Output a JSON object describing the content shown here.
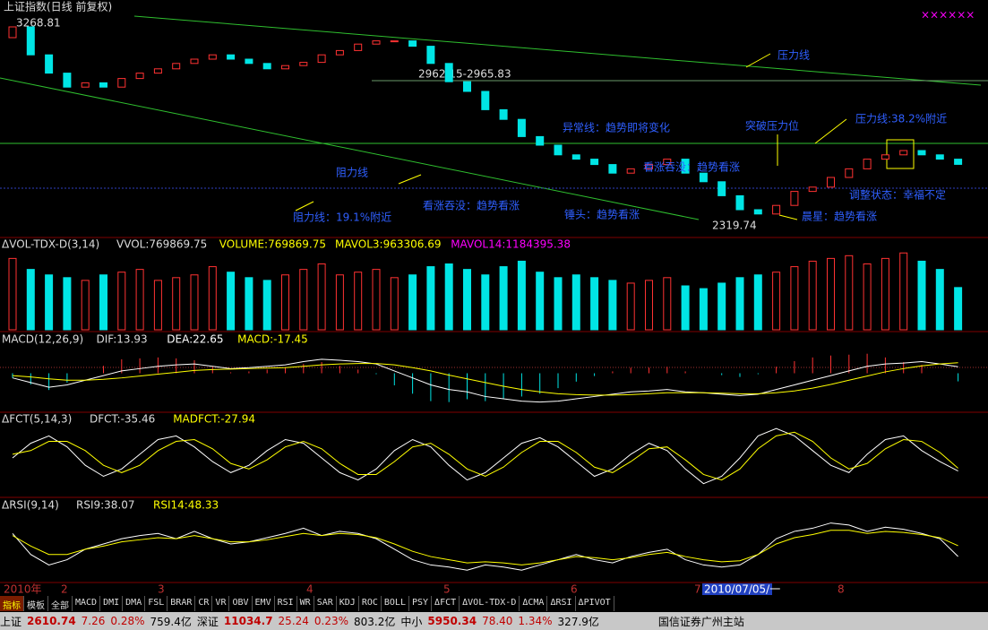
{
  "title": "上证指数(日线 前复权)",
  "corner_mark": "××××××",
  "price": {
    "ylim": [
      2300,
      3300
    ],
    "open": [
      3200,
      3250,
      3120,
      3035,
      2970,
      2990,
      2970,
      3010,
      3035,
      3055,
      3080,
      3100,
      3120,
      3100,
      3080,
      3055,
      3070,
      3085,
      3120,
      3140,
      3170,
      3185,
      3185,
      3160,
      3080,
      2995,
      2950,
      2865,
      2820,
      2740,
      2700,
      2655,
      2635,
      2610,
      2570,
      2590,
      2610,
      2635,
      2570,
      2530,
      2465,
      2400,
      2380,
      2420,
      2485,
      2505,
      2550,
      2590,
      2635,
      2655,
      2675,
      2655,
      2635
    ],
    "close": [
      3250,
      3120,
      3035,
      2970,
      2990,
      2970,
      3010,
      3035,
      3055,
      3080,
      3100,
      3120,
      3100,
      3080,
      3055,
      3070,
      3085,
      3120,
      3140,
      3170,
      3185,
      3185,
      3160,
      3080,
      2995,
      2950,
      2865,
      2820,
      2740,
      2700,
      2655,
      2635,
      2610,
      2570,
      2590,
      2610,
      2635,
      2570,
      2530,
      2465,
      2400,
      2380,
      2420,
      2485,
      2505,
      2550,
      2590,
      2635,
      2655,
      2675,
      2655,
      2635,
      2610.74
    ],
    "high_label": "3268.81",
    "low_label": "2319.74",
    "level_label": "2962.15-2965.83",
    "annotations": [
      "压力线",
      "异常线：趋势即将变化",
      "突破压力位",
      "压力线:38.2%附近",
      "阻力线",
      "看涨吞没：趋势看涨",
      "锤头：趋势看涨",
      "看涨吞没：趋势看涨",
      "阻力线：19.1%附近",
      "晨星：趋势看涨",
      "调整状态：幸福不定"
    ]
  },
  "volume": {
    "name": "ΔVOL-TDX-D(3,14)",
    "labels": [
      "VVOL:769869.75",
      "VOLUME:769869.75",
      "MAVOL3:963306.69",
      "MAVOL14:1184395.38"
    ],
    "ylim": [
      0,
      1600000
    ],
    "values": [
      1300000,
      1100000,
      1000000,
      950000,
      900000,
      1000000,
      1050000,
      1100000,
      900000,
      950000,
      1000000,
      1150000,
      1050000,
      950000,
      900000,
      1000000,
      1100000,
      1200000,
      1000000,
      1050000,
      1100000,
      950000,
      1000000,
      1150000,
      1200000,
      1100000,
      1000000,
      1150000,
      1250000,
      1050000,
      950000,
      1000000,
      950000,
      900000,
      850000,
      900000,
      950000,
      800000,
      750000,
      850000,
      950000,
      1000000,
      1050000,
      1150000,
      1250000,
      1300000,
      1350000,
      1200000,
      1300000,
      1400000,
      1250000,
      1100000,
      769869.75
    ]
  },
  "macd": {
    "name": "MACD(12,26,9)",
    "labels": [
      "DIF:13.93",
      "DEA:22.65",
      "MACD:-17.45"
    ],
    "ylim": [
      -80,
      80
    ],
    "dif": [
      -10,
      -20,
      -30,
      -25,
      -15,
      -5,
      5,
      10,
      15,
      18,
      20,
      15,
      10,
      12,
      15,
      18,
      25,
      30,
      28,
      25,
      20,
      5,
      -10,
      -25,
      -35,
      -40,
      -50,
      -55,
      -60,
      -62,
      -60,
      -55,
      -50,
      -45,
      -40,
      -38,
      -35,
      -40,
      -42,
      -45,
      -48,
      -45,
      -35,
      -25,
      -15,
      -5,
      5,
      15,
      20,
      22,
      25,
      20,
      13.93
    ],
    "dea": [
      -5,
      -8,
      -12,
      -15,
      -15,
      -13,
      -10,
      -6,
      -2,
      2,
      6,
      8,
      9,
      10,
      11,
      12,
      15,
      18,
      20,
      21,
      21,
      18,
      12,
      5,
      -4,
      -12,
      -20,
      -28,
      -35,
      -40,
      -44,
      -46,
      -47,
      -47,
      -46,
      -44,
      -42,
      -42,
      -42,
      -43,
      -44,
      -44,
      -42,
      -38,
      -32,
      -24,
      -15,
      -6,
      3,
      10,
      16,
      20,
      22.65
    ],
    "bars": [
      -10,
      -24,
      -36,
      -20,
      0,
      16,
      30,
      32,
      34,
      32,
      28,
      14,
      2,
      4,
      8,
      12,
      20,
      24,
      16,
      8,
      -2,
      -26,
      -44,
      -60,
      -62,
      -56,
      -60,
      -54,
      -50,
      -44,
      -32,
      -18,
      -6,
      4,
      12,
      12,
      14,
      4,
      0,
      -4,
      -8,
      -2,
      14,
      26,
      34,
      38,
      40,
      42,
      34,
      24,
      18,
      0,
      -17.45
    ]
  },
  "fct": {
    "name": "ΔFCT(5,14,3)",
    "labels": [
      "DFCT:-35.46",
      "MADFCT:-27.94"
    ],
    "ylim": [
      -100,
      100
    ],
    "dfct": [
      0,
      40,
      60,
      30,
      -20,
      -50,
      -30,
      10,
      50,
      60,
      30,
      -10,
      -40,
      -20,
      20,
      50,
      40,
      0,
      -40,
      -60,
      -30,
      20,
      50,
      30,
      -20,
      -60,
      -40,
      0,
      40,
      55,
      30,
      -10,
      -50,
      -30,
      10,
      40,
      20,
      -30,
      -70,
      -50,
      0,
      60,
      80,
      60,
      20,
      -20,
      -40,
      10,
      50,
      60,
      20,
      -10,
      -35.46
    ],
    "madfct": [
      10,
      20,
      45,
      45,
      20,
      -20,
      -40,
      -20,
      20,
      45,
      50,
      25,
      -15,
      -30,
      -5,
      30,
      45,
      25,
      -15,
      -45,
      -45,
      -10,
      30,
      40,
      10,
      -30,
      -50,
      -25,
      15,
      45,
      45,
      15,
      -25,
      -40,
      -10,
      25,
      30,
      -5,
      -45,
      -60,
      -30,
      25,
      60,
      70,
      45,
      0,
      -30,
      -15,
      25,
      50,
      45,
      15,
      -27.94
    ]
  },
  "rsi": {
    "name": "ΔRSI(9,14)",
    "labels": [
      "RSI9:38.07",
      "RSI14:48.33"
    ],
    "ylim": [
      15,
      85
    ],
    "rsi9": [
      60,
      40,
      30,
      35,
      45,
      50,
      55,
      58,
      60,
      55,
      62,
      55,
      50,
      52,
      56,
      60,
      65,
      58,
      62,
      60,
      55,
      45,
      35,
      30,
      28,
      25,
      30,
      28,
      25,
      30,
      35,
      40,
      35,
      32,
      38,
      42,
      45,
      35,
      30,
      28,
      30,
      40,
      55,
      62,
      65,
      70,
      68,
      62,
      66,
      64,
      60,
      55,
      38.07
    ],
    "rsi14": [
      58,
      48,
      40,
      40,
      45,
      48,
      52,
      54,
      56,
      55,
      58,
      55,
      52,
      52,
      54,
      57,
      60,
      58,
      60,
      59,
      56,
      50,
      43,
      38,
      35,
      32,
      33,
      32,
      30,
      32,
      35,
      38,
      37,
      35,
      37,
      40,
      42,
      38,
      35,
      33,
      34,
      40,
      50,
      56,
      59,
      63,
      63,
      60,
      62,
      61,
      59,
      56,
      48.33
    ]
  },
  "x_labels": [
    "2010年",
    "2",
    "3",
    "4",
    "5",
    "6",
    "7",
    "2010/07/05/一",
    "8"
  ],
  "tabs": [
    "指标",
    "模板",
    "全部",
    "MACD",
    "DMI",
    "DMA",
    "FSL",
    "BRAR",
    "CR",
    "VR",
    "OBV",
    "EMV",
    "RSI",
    "WR",
    "SAR",
    "KDJ",
    "ROC",
    "BOLL",
    "PSY",
    "ΔFCT",
    "ΔVOL-TDX-D",
    "ΔCMA",
    "ΔRSI",
    "ΔPIVOT"
  ],
  "status": [
    [
      "上证",
      "2610.74",
      "7.26",
      "0.28%",
      "759.4亿"
    ],
    [
      "深证",
      "11034.7",
      "25.24",
      "0.23%",
      "803.2亿"
    ],
    [
      "中小",
      "5950.34",
      "78.40",
      "1.34%",
      "327.9亿"
    ]
  ],
  "broker": "国信证券广州主站"
}
